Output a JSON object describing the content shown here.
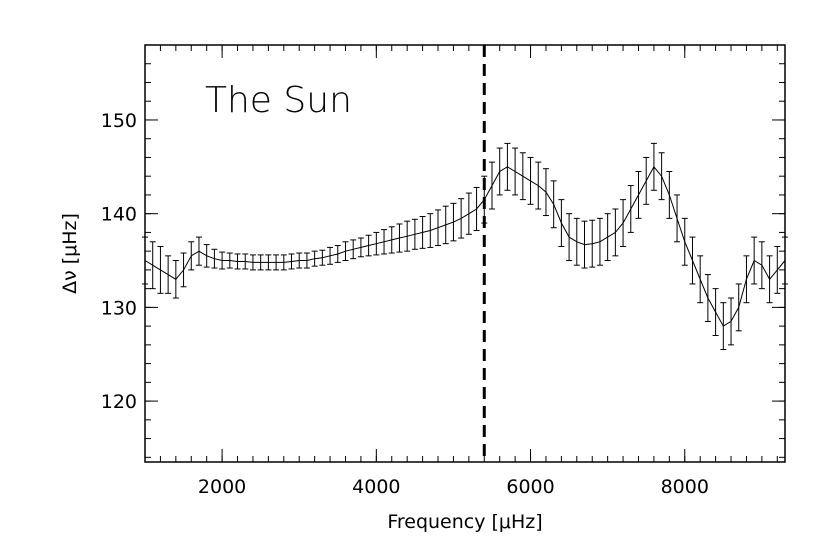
{
  "chart_data": {
    "type": "line",
    "title": "",
    "annotation": "The Sun",
    "xlabel": "Frequency [μHz]",
    "ylabel": "Δν [μHz]",
    "xlim": [
      1000,
      9300
    ],
    "ylim": [
      113.5,
      158
    ],
    "xticks": [
      2000,
      4000,
      6000,
      8000
    ],
    "xtick_labels": [
      "2000",
      "4000",
      "6000",
      "8000"
    ],
    "yticks": [
      120,
      130,
      140,
      150
    ],
    "ytick_labels": [
      "120",
      "130",
      "140",
      "150"
    ],
    "x_minor_step": 200,
    "y_minor_step": 2,
    "vline": 5400,
    "grid": false,
    "series": [
      {
        "x": [
          1000,
          1100,
          1200,
          1300,
          1400,
          1500,
          1600,
          1700,
          1800,
          1900,
          2000,
          2100,
          2200,
          2300,
          2400,
          2500,
          2600,
          2700,
          2800,
          2900,
          3000,
          3100,
          3200,
          3300,
          3400,
          3500,
          3600,
          3700,
          3800,
          3900,
          4000,
          4100,
          4200,
          4300,
          4400,
          4500,
          4600,
          4700,
          4800,
          4900,
          5000,
          5100,
          5200,
          5300,
          5400,
          5500,
          5600,
          5700,
          5800,
          5900,
          6000,
          6100,
          6200,
          6300,
          6400,
          6500,
          6600,
          6700,
          6800,
          6900,
          7000,
          7100,
          7200,
          7300,
          7400,
          7500,
          7600,
          7700,
          7800,
          7900,
          8000,
          8100,
          8200,
          8300,
          8400,
          8500,
          8600,
          8700,
          8800,
          8900,
          9000,
          9100,
          9200,
          9300
        ],
        "y": [
          135,
          134.5,
          134,
          133.5,
          133,
          134,
          135.5,
          136,
          135.5,
          135.2,
          135,
          135,
          134.9,
          134.9,
          134.8,
          134.8,
          134.8,
          134.8,
          134.8,
          134.9,
          135,
          135,
          135.2,
          135.3,
          135.5,
          135.7,
          136,
          136.2,
          136.4,
          136.6,
          136.8,
          137,
          137.2,
          137.4,
          137.6,
          137.8,
          138,
          138.2,
          138.5,
          138.8,
          139.1,
          139.5,
          140,
          140.5,
          141.5,
          143,
          144.5,
          145,
          144.5,
          144,
          143.5,
          143,
          142.3,
          141,
          139,
          137.5,
          137,
          136.7,
          136.8,
          137,
          137.5,
          138,
          139,
          140.5,
          142,
          143.5,
          145,
          144,
          142,
          139.5,
          137,
          135,
          133,
          131,
          129.5,
          128,
          128.5,
          130,
          133,
          135,
          134.5,
          133,
          134,
          135
        ],
        "yerr": [
          2.5,
          2.5,
          2.5,
          2,
          2,
          1.8,
          1.5,
          1.5,
          1.2,
          1,
          0.9,
          0.8,
          0.8,
          0.8,
          0.8,
          0.8,
          0.8,
          0.8,
          0.8,
          0.8,
          0.8,
          0.8,
          0.8,
          0.8,
          0.9,
          0.9,
          1,
          1,
          1,
          1.1,
          1.2,
          1.3,
          1.4,
          1.5,
          1.6,
          1.6,
          1.7,
          1.8,
          1.9,
          2,
          2,
          2.1,
          2.2,
          2.3,
          2.5,
          2.5,
          2.5,
          2.5,
          2.5,
          2.5,
          2.5,
          2.5,
          2.5,
          2.5,
          2.5,
          2.5,
          2.5,
          2.5,
          2.5,
          2.5,
          2.5,
          2.5,
          2.5,
          2.5,
          2.5,
          2.5,
          2.5,
          2.5,
          2.5,
          2.5,
          2.5,
          2.5,
          2.5,
          2.5,
          2.5,
          2.5,
          2.5,
          2.5,
          2.5,
          2.5,
          2.5,
          2.5,
          2.5,
          2.5
        ]
      }
    ]
  }
}
